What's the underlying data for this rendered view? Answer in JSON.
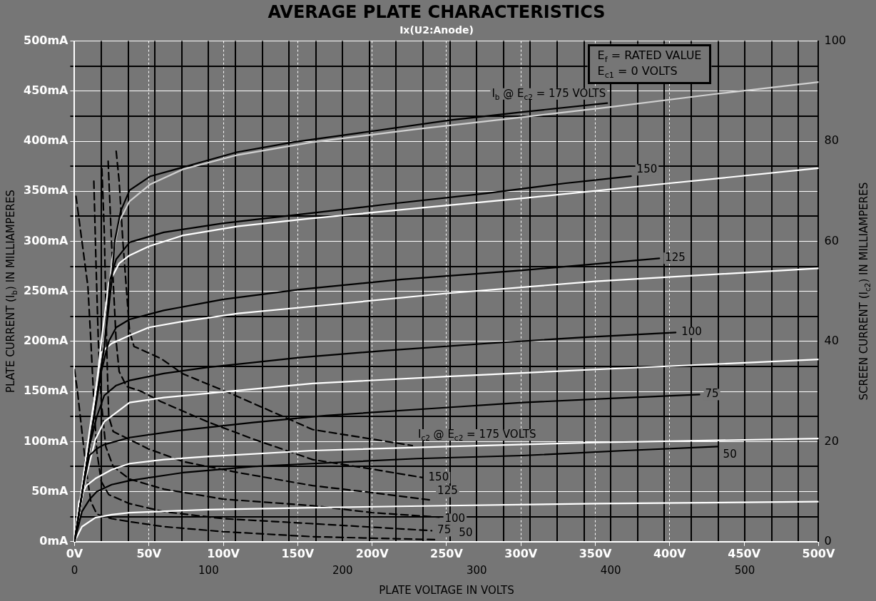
{
  "chart_data": {
    "type": "line",
    "title": "AVERAGE PLATE CHARACTERISTICS",
    "subtitle": "Ix(U2:Anode)",
    "xlabel": "PLATE VOLTAGE IN VOLTS",
    "ylabel": "PLATE CURRENT (I$_{b}$) IN MILLIAMPERES",
    "y2label": "SCREEN CURRENT (I$_{c2}$) IN MILLIAMPERES",
    "xlim": [
      0,
      500
    ],
    "xticks": [
      {
        "value": 0,
        "label": "0V"
      },
      {
        "value": 50,
        "label": "50V"
      },
      {
        "value": 100,
        "label": "100V"
      },
      {
        "value": 150,
        "label": "150V"
      },
      {
        "value": 200,
        "label": "200V"
      },
      {
        "value": 250,
        "label": "250V"
      },
      {
        "value": 300,
        "label": "300V"
      },
      {
        "value": 350,
        "label": "350V"
      },
      {
        "value": 400,
        "label": "400V"
      },
      {
        "value": 450,
        "label": "450V"
      },
      {
        "value": 500,
        "label": "500V"
      }
    ],
    "x2lim": [
      0,
      555
    ],
    "x2ticks": [
      0,
      {
        "value": 20,
        "label": null
      },
      {
        "value": 40,
        "label": null
      },
      {
        "value": 60,
        "label": null
      },
      {
        "value": 80,
        "label": null
      },
      100,
      {
        "value": 120,
        "label": null
      },
      {
        "value": 140,
        "label": null
      },
      {
        "value": 160,
        "label": null
      },
      {
        "value": 180,
        "label": null
      },
      200,
      {
        "value": 220,
        "label": null
      },
      {
        "value": 240,
        "label": null
      },
      {
        "value": 260,
        "label": null
      },
      {
        "value": 280,
        "label": null
      },
      300,
      {
        "value": 320,
        "label": null
      },
      {
        "value": 340,
        "label": null
      },
      {
        "value": 360,
        "label": null
      },
      {
        "value": 380,
        "label": null
      },
      400,
      {
        "value": 420,
        "label": null
      },
      {
        "value": 440,
        "label": null
      },
      {
        "value": 460,
        "label": null
      },
      {
        "value": 480,
        "label": null
      },
      500,
      {
        "value": 520,
        "label": null
      },
      {
        "value": 540,
        "label": null
      }
    ],
    "ylim": [
      0,
      500
    ],
    "yticks": [
      {
        "value": 0,
        "label": "0mA"
      },
      {
        "value": 25,
        "label": null
      },
      {
        "value": 50,
        "label": "50mA"
      },
      {
        "value": 75,
        "label": null
      },
      {
        "value": 100,
        "label": "100mA"
      },
      {
        "value": 125,
        "label": null
      },
      {
        "value": 150,
        "label": "150mA"
      },
      {
        "value": 175,
        "label": null
      },
      {
        "value": 200,
        "label": "200mA"
      },
      {
        "value": 225,
        "label": null
      },
      {
        "value": 250,
        "label": "250mA"
      },
      {
        "value": 275,
        "label": null
      },
      {
        "value": 300,
        "label": "300mA"
      },
      {
        "value": 325,
        "label": null
      },
      {
        "value": 350,
        "label": "350mA"
      },
      {
        "value": 375,
        "label": null
      },
      {
        "value": 400,
        "label": "400mA"
      },
      {
        "value": 425,
        "label": null
      },
      {
        "value": 450,
        "label": "450mA"
      },
      {
        "value": 475,
        "label": null
      },
      {
        "value": 500,
        "label": "500mA"
      }
    ],
    "y2lim": [
      0,
      100
    ],
    "y2ticks": [
      0,
      20,
      40,
      60,
      80,
      100
    ],
    "grid": true,
    "legend": false,
    "marker": "none",
    "series": [
      {
        "name": "I$_{b}$ @ E$_{c2}$ = 175 VOLTS",
        "color": "#000000",
        "x": [
          0,
          10,
          20,
          25,
          27,
          31,
          37,
          51,
          73,
          109,
          147,
          200,
          252,
          300,
          358
        ],
        "values": [
          0,
          95,
          195,
          260,
          300,
          330,
          351,
          365,
          374,
          389,
          399,
          410,
          421,
          429,
          438
        ]
      },
      {
        "name": "150",
        "color": "#000000",
        "x": [
          0,
          10,
          20,
          24,
          28,
          37,
          60,
          100,
          152,
          210,
          277,
          330,
          374
        ],
        "values": [
          0,
          95,
          195,
          262,
          282,
          299,
          309,
          318,
          327,
          337,
          348,
          358,
          365
        ]
      },
      {
        "name": "125",
        "color": "#000000",
        "x": [
          0,
          10,
          18,
          23,
          28,
          37,
          60,
          100,
          152,
          220,
          301,
          393
        ],
        "values": [
          0,
          95,
          170,
          200,
          214,
          222,
          231,
          242,
          252,
          262,
          271,
          283
        ]
      },
      {
        "name": "100",
        "color": "#000000",
        "x": [
          0,
          10,
          15,
          20,
          28,
          37,
          60,
          89,
          152,
          210,
          277,
          340,
          404
        ],
        "values": [
          0,
          95,
          125,
          146,
          156,
          161,
          168,
          174,
          184,
          191,
          198,
          204,
          209
        ]
      },
      {
        "name": "75",
        "color": "#000000",
        "x": [
          0,
          5,
          10,
          15,
          20,
          37,
          70,
          120,
          169,
          240,
          301,
          360,
          420
        ],
        "values": [
          0,
          48,
          86,
          93,
          97,
          104,
          111,
          119,
          126,
          133,
          139,
          143,
          147
        ]
      },
      {
        "name": "50",
        "color": "#000000",
        "x": [
          0,
          5,
          10,
          15,
          25,
          37,
          73,
          120,
          160,
          230,
          301,
          370,
          432
        ],
        "values": [
          0,
          30,
          42,
          50,
          57,
          61,
          69,
          75,
          78,
          83,
          86,
          91,
          95
        ]
      },
      {
        "color": "#d0d0d0",
        "x": [
          0,
          10,
          20,
          25,
          30,
          37,
          51,
          73,
          109,
          160,
          230,
          301,
          359,
          430,
          500
        ],
        "values": [
          0,
          90,
          200,
          280,
          320,
          340,
          357,
          372,
          386,
          399,
          412,
          424,
          434,
          447,
          459
        ]
      },
      {
        "color": "#ffffff",
        "x": [
          0,
          10,
          18,
          23,
          30,
          37,
          50,
          73,
          110,
          160,
          230,
          301,
          400,
          500
        ],
        "values": [
          0,
          90,
          200,
          258,
          278,
          286,
          295,
          306,
          315,
          323,
          333,
          343,
          358,
          373
        ]
      },
      {
        "color": "#ffffff",
        "x": [
          0,
          10,
          18,
          25,
          37,
          50,
          73,
          110,
          160,
          250,
          350,
          500
        ],
        "values": [
          0,
          110,
          189,
          198,
          206,
          214,
          220,
          228,
          235,
          248,
          260,
          273
        ]
      },
      {
        "color": "#ffffff",
        "x": [
          0,
          7,
          14,
          20,
          37,
          60,
          89,
          160,
          250,
          350,
          500
        ],
        "values": [
          0,
          60,
          102,
          120,
          139,
          144,
          148,
          158,
          165,
          172,
          182
        ]
      },
      {
        "color": "#ffffff",
        "x": [
          0,
          3,
          8,
          14,
          25,
          37,
          60,
          89,
          160,
          250,
          350,
          500
        ],
        "values": [
          0,
          40,
          56,
          63,
          72,
          78,
          82,
          85,
          91,
          95,
          99,
          103
        ]
      },
      {
        "color": "#ffffff",
        "x": [
          0,
          5,
          14,
          25,
          37,
          89,
          160,
          250,
          350,
          500
        ],
        "values": [
          0,
          15,
          24,
          27,
          29,
          32,
          34,
          36,
          38,
          40
        ]
      },
      {
        "name": "I$_{c2}$ @ E$_{c2}$ = 175 VOLTS",
        "color": "#000000",
        "axis": "y2",
        "line_style": "dashed",
        "x": [
          28,
          30,
          32.5,
          35,
          37,
          40,
          58,
          73,
          105,
          160,
          227
        ],
        "values": [
          78,
          72,
          60,
          50,
          42,
          39,
          36.6,
          33.5,
          29.6,
          22.4,
          19.2
        ]
      },
      {
        "name": "150",
        "color": "#000000",
        "axis": "y2",
        "line_style": "dashed",
        "x": [
          22.6,
          24,
          26,
          28,
          30,
          35,
          45,
          58,
          89,
          120,
          160,
          200,
          234
        ],
        "values": [
          76,
          66,
          52,
          40,
          34,
          31,
          30,
          28,
          24,
          20.5,
          16.4,
          14.5,
          12.8
        ]
      },
      {
        "name": "125",
        "color": "#000000",
        "axis": "y2",
        "line_style": "dashed",
        "x": [
          18.4,
          20,
          21,
          22,
          23,
          26,
          37,
          50,
          73,
          110,
          160,
          200,
          240
        ],
        "values": [
          74.5,
          62,
          48,
          35,
          25,
          22,
          20.4,
          18.5,
          16,
          13.8,
          11.2,
          9.8,
          8.3
        ]
      },
      {
        "name": "100",
        "color": "#000000",
        "axis": "y2",
        "line_style": "dashed",
        "x": [
          13,
          14.5,
          16,
          18,
          21,
          26,
          37,
          60,
          100,
          160,
          200,
          245
        ],
        "values": [
          72,
          55,
          40,
          28,
          19,
          15,
          12.5,
          10.5,
          8.5,
          7.2,
          5.8,
          4.9
        ]
      },
      {
        "name": "75",
        "color": "#000000",
        "axis": "y2",
        "line_style": "dashed",
        "x": [
          1,
          5,
          9,
          11,
          13,
          15,
          18,
          23,
          37,
          60,
          100,
          160,
          200,
          240
        ],
        "values": [
          69,
          60,
          51,
          40,
          28,
          18,
          12,
          9.4,
          7.6,
          6,
          4.6,
          3.6,
          2.9,
          2.2
        ]
      },
      {
        "name": "50",
        "color": "#000000",
        "axis": "y2",
        "line_style": "dashed",
        "x": [
          0,
          2,
          5,
          8,
          11,
          15,
          25,
          37,
          60,
          100,
          160,
          200,
          243
        ],
        "values": [
          34.4,
          30,
          22,
          14,
          8,
          5.5,
          4.6,
          4,
          3,
          2,
          1,
          0.7,
          0.4
        ]
      }
    ],
    "annotations": [
      "E$_{f}$ = RATED VALUE",
      "E$_{c1}$ = 0 VOLTS"
    ]
  }
}
